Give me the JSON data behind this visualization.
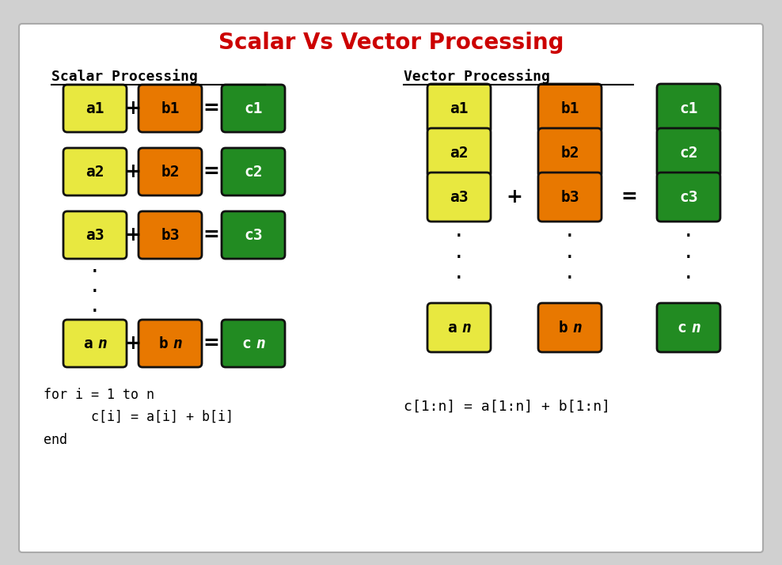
{
  "title": "Scalar Vs Vector Processing",
  "title_color": "#cc0000",
  "title_fontsize": 20,
  "outer_bg": "#d0d0d0",
  "panel_bg": "#ffffff",
  "color_a": "#e8e840",
  "color_b": "#e87800",
  "color_c": "#228b22",
  "border_color": "#111111",
  "scalar_title": "Scalar Processing",
  "vector_title": "Vector Processing",
  "scalar_a": [
    "a1",
    "a2",
    "a3",
    "an"
  ],
  "scalar_b": [
    "b1",
    "b2",
    "b3",
    "bn"
  ],
  "scalar_c": [
    "c1",
    "c2",
    "c3",
    "cn"
  ],
  "vector_a": [
    "a1",
    "a2",
    "a3",
    "an"
  ],
  "vector_b": [
    "b1",
    "b2",
    "b3",
    "bn"
  ],
  "vector_c": [
    "c1",
    "c2",
    "c3",
    "cn"
  ],
  "scalar_code_lines": [
    "for i = 1 to n",
    "      c[i] = a[i] + b[i]",
    "end"
  ],
  "vector_code": "c[1:n] = a[1:n] + b[1:n]",
  "font_mono": "monospace"
}
